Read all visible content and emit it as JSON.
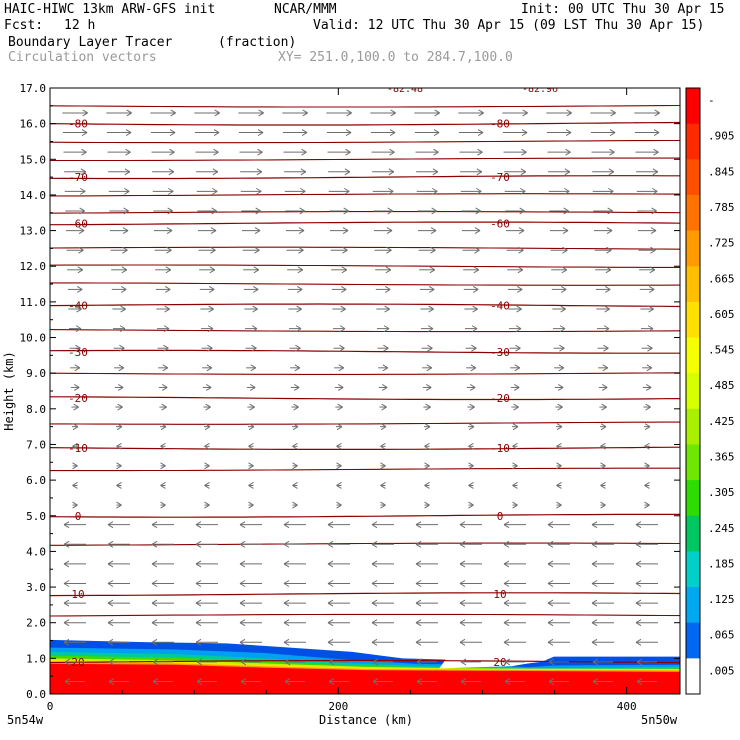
{
  "header": {
    "line1_left": "HAIC-HIWC 13km ARW-GFS init",
    "line1_mid": "NCAR/MMM",
    "line1_right": "Init: 00 UTC Thu 30 Apr 15",
    "fcst_label": "Fcst:",
    "fcst_value": "12 h",
    "valid": "Valid: 12 UTC Thu 30 Apr 15 (09 LST Thu 30 Apr 15)",
    "field_name": "Boundary Layer Tracer",
    "field_units": "(fraction)",
    "vector_label": "Circulation vectors",
    "xy_label": "XY= 251.0,100.0 to 284.7,100.0"
  },
  "chart_data": {
    "type": "heatmap",
    "title": "Boundary Layer Tracer",
    "units": "(fraction)",
    "overlay": "Circulation vectors",
    "xlabel": "Distance (km)",
    "ylabel": "Height (km)",
    "xlim": [
      0,
      437
    ],
    "ylim": [
      0,
      17
    ],
    "x_ticks": [
      "0",
      "200",
      "400"
    ],
    "x_tick_values": [
      0,
      200,
      400
    ],
    "y_ticks": [
      "0.0",
      "1.0",
      "2.0",
      "3.0",
      "4.0",
      "5.0",
      "6.0",
      "7.0",
      "8.0",
      "9.0",
      "10.0",
      "11.0",
      "12.0",
      "13.0",
      "14.0",
      "15.0",
      "16.0",
      "17.0"
    ],
    "x_end_labels": [
      "5n54w",
      "5n50w"
    ],
    "colorbar_labels": [
      "-",
      ".905",
      ".845",
      ".785",
      ".725",
      ".665",
      ".605",
      ".545",
      ".485",
      ".425",
      ".365",
      ".305",
      ".245",
      ".185",
      ".125",
      ".065",
      ".005"
    ],
    "colorbar_colors": [
      "#ff0000",
      "#ff2a00",
      "#ff5000",
      "#ff7400",
      "#ff9a00",
      "#ffbe00",
      "#ffe000",
      "#f6ff00",
      "#d6ff00",
      "#a8f000",
      "#6ee800",
      "#2fdc00",
      "#00c860",
      "#00d0c8",
      "#00a8f0",
      "#0068f0",
      "#ffffff"
    ],
    "temperature_contours": [
      {
        "label": "-80",
        "z": 16.0
      },
      {
        "label": "-70",
        "z": 14.5
      },
      {
        "label": "-60",
        "z": 13.2
      },
      {
        "label": "-40",
        "z": 10.9
      },
      {
        "label": "-30",
        "z": 9.6
      },
      {
        "label": "-20",
        "z": 8.3
      },
      {
        "label": "-10",
        "z": 6.9
      },
      {
        "label": "0",
        "z": 5.0
      },
      {
        "label": "10",
        "z": 2.8
      },
      {
        "label": "20",
        "z": 0.9
      }
    ],
    "top_labels": [
      "-82.48",
      "-82.96"
    ]
  }
}
